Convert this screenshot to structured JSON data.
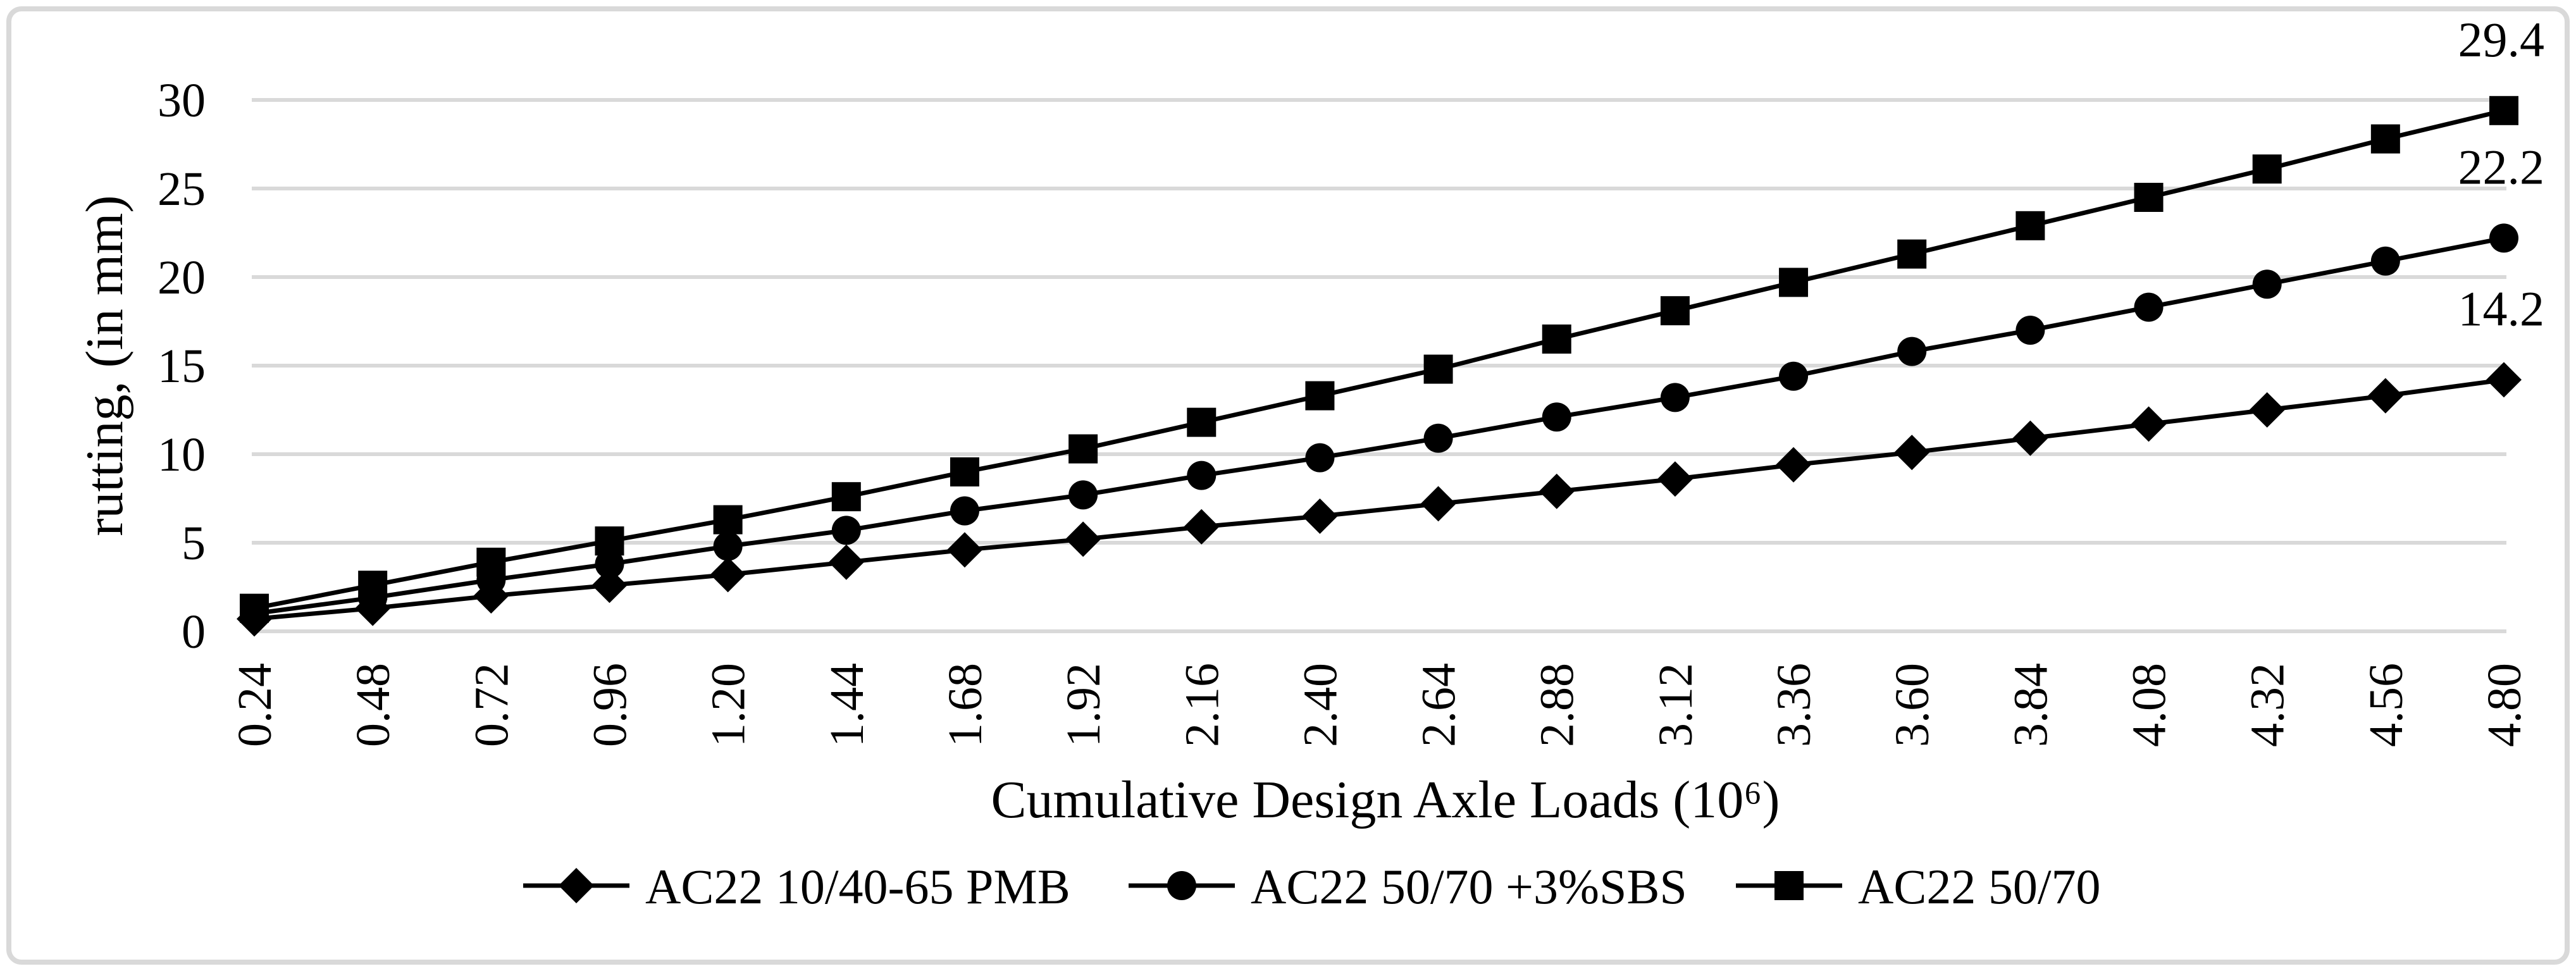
{
  "figure": {
    "background": "#ffffff",
    "border_color": "#d9d9d9",
    "text_color": "#000000"
  },
  "chart_data": {
    "type": "line",
    "title": "",
    "xlabel": "Cumulative Design Axle Loads (10⁶)",
    "ylabel": "rutting, (in mm)",
    "x_categories": [
      "0.24",
      "0.48",
      "0.72",
      "0.96",
      "1.20",
      "1.44",
      "1.68",
      "1.92",
      "2.16",
      "2.40",
      "2.64",
      "2.88",
      "3.12",
      "3.36",
      "3.60",
      "3.84",
      "4.08",
      "4.32",
      "4.56",
      "4.80"
    ],
    "y_ticks": [
      0,
      5,
      10,
      15,
      20,
      25,
      30
    ],
    "ylim": [
      0,
      30
    ],
    "grid": "horizontal",
    "gridline_color": "#d9d9d9",
    "series_color": "#000000",
    "legend_position": "bottom",
    "series": [
      {
        "name": "AC22 10/40-65 PMB",
        "marker": "diamond",
        "end_label": "14.2",
        "values": [
          0.7,
          1.3,
          2.0,
          2.6,
          3.2,
          3.9,
          4.6,
          5.2,
          5.9,
          6.5,
          7.2,
          7.9,
          8.6,
          9.4,
          10.1,
          10.9,
          11.7,
          12.5,
          13.3,
          14.2
        ]
      },
      {
        "name": "AC22 50/70 +3%SBS",
        "marker": "circle",
        "end_label": "22.2",
        "values": [
          1.0,
          1.9,
          2.9,
          3.8,
          4.8,
          5.7,
          6.8,
          7.7,
          8.8,
          9.8,
          10.9,
          12.1,
          13.2,
          14.4,
          15.8,
          17.0,
          18.3,
          19.6,
          20.9,
          22.2
        ]
      },
      {
        "name": "AC22 50/70",
        "marker": "square",
        "end_label": "29.4",
        "values": [
          1.3,
          2.6,
          3.9,
          5.1,
          6.3,
          7.6,
          9.0,
          10.3,
          11.8,
          13.3,
          14.8,
          16.5,
          18.1,
          19.7,
          21.3,
          22.9,
          24.5,
          26.1,
          27.8,
          29.4
        ]
      }
    ]
  }
}
